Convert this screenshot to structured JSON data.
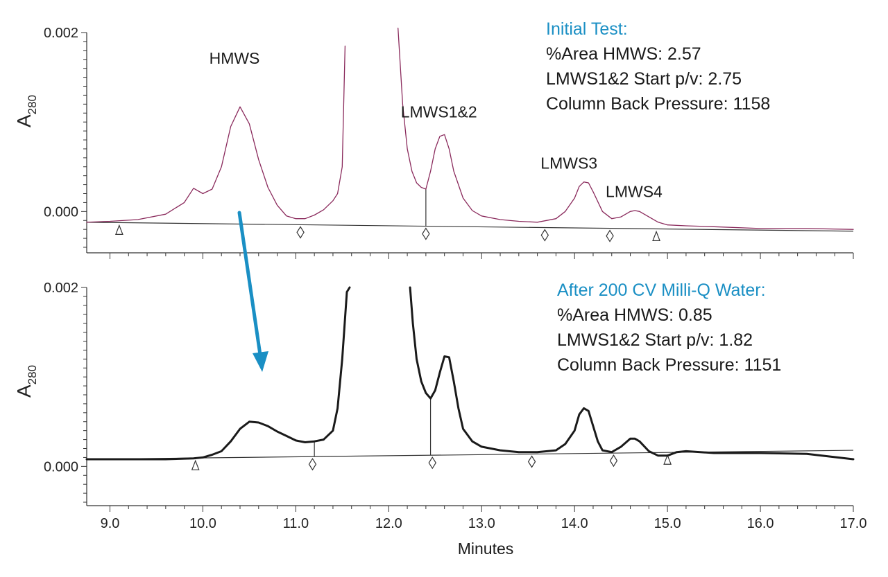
{
  "chart_data": {
    "type": "line",
    "xlabel": "Minutes",
    "x_ticks": [
      "9.0",
      "10.0",
      "11.0",
      "12.0",
      "13.0",
      "14.0",
      "15.0",
      "16.0",
      "17.0"
    ],
    "x_tick_values": [
      9,
      10,
      11,
      12,
      13,
      14,
      15,
      16,
      17
    ],
    "xlim": [
      8.75,
      17.0
    ],
    "colors": {
      "initial": "#8a2a5c",
      "after": "#1a1a1a",
      "accent": "#1a8fc4",
      "baseline": "#333333"
    },
    "panels": [
      {
        "id": "initial",
        "ylabel_main": "A",
        "ylabel_sub": "280",
        "ylim": [
          -0.0004,
          0.002
        ],
        "y_ticks": [
          "0.002",
          "0.000"
        ],
        "y_tick_values": [
          0.002,
          0.0
        ],
        "info_title": "Initial Test:",
        "info_lines": [
          "%Area HMWS: 2.57",
          "LMWS1&2 Start p/v: 2.75",
          "Column Back Pressure: 1158"
        ],
        "peak_labels": [
          {
            "text": "HMWS",
            "x": 10.4,
            "y": 0.00165
          },
          {
            "text": "LMWS1&2",
            "x": 12.6,
            "y": 0.00105
          },
          {
            "text": "LMWS3",
            "x": 14.0,
            "y": 0.00048
          },
          {
            "text": "LMWS4",
            "x": 14.7,
            "y": 0.00016
          }
        ],
        "baseline": {
          "x": [
            8.75,
            17.0
          ],
          "y": [
            -0.00012,
            -0.00022
          ]
        },
        "drops": [
          {
            "x": 12.4,
            "y": 0.00025
          }
        ],
        "markers": [
          {
            "x": 9.1,
            "shape": "triangle"
          },
          {
            "x": 11.05,
            "shape": "diamond"
          },
          {
            "x": 12.4,
            "shape": "diamond"
          },
          {
            "x": 13.68,
            "shape": "diamond"
          },
          {
            "x": 14.38,
            "shape": "diamond"
          },
          {
            "x": 14.88,
            "shape": "triangle"
          }
        ],
        "series": [
          {
            "name": "Initial Test",
            "segments": [
              {
                "x": [
                  8.75,
                  9.0,
                  9.3,
                  9.6,
                  9.8,
                  9.9,
                  10.0,
                  10.1,
                  10.2,
                  10.3,
                  10.4,
                  10.5,
                  10.6,
                  10.7,
                  10.8,
                  10.9,
                  11.0,
                  11.1,
                  11.2,
                  11.3,
                  11.4,
                  11.45,
                  11.5,
                  11.53
                ],
                "y": [
                  -0.00012,
                  -0.00011,
                  -9e-05,
                  -3e-05,
                  0.0001,
                  0.00026,
                  0.0002,
                  0.00025,
                  0.0005,
                  0.00095,
                  0.00117,
                  0.00098,
                  0.00058,
                  0.00027,
                  7e-05,
                  -5e-05,
                  -8e-05,
                  -8e-05,
                  -4e-05,
                  2e-05,
                  0.00012,
                  0.0002,
                  0.0005,
                  0.00185
                ]
              },
              {
                "x": [
                  12.1,
                  12.15,
                  12.2,
                  12.25,
                  12.3,
                  12.35,
                  12.4,
                  12.45,
                  12.5,
                  12.55,
                  12.6,
                  12.65,
                  12.7,
                  12.8,
                  12.9,
                  13.0,
                  13.2,
                  13.4,
                  13.6,
                  13.8,
                  13.9,
                  14.0,
                  14.05,
                  14.1,
                  14.15,
                  14.2,
                  14.3,
                  14.4,
                  14.5,
                  14.6,
                  14.65,
                  14.7,
                  14.8,
                  14.9,
                  15.0,
                  15.2,
                  15.5,
                  16.0,
                  16.5,
                  17.0
                ],
                "y": [
                  0.00205,
                  0.0012,
                  0.0007,
                  0.00045,
                  0.00032,
                  0.00027,
                  0.00025,
                  0.00045,
                  0.0007,
                  0.00084,
                  0.00086,
                  0.0007,
                  0.00045,
                  0.00015,
                  1e-05,
                  -5e-05,
                  -9e-05,
                  -0.00011,
                  -0.00012,
                  -8e-05,
                  0.0,
                  0.00015,
                  0.00028,
                  0.00033,
                  0.00032,
                  0.00022,
                  0.0,
                  -8e-05,
                  -6e-05,
                  0.0,
                  1e-05,
                  0.0,
                  -6e-05,
                  -0.00012,
                  -0.00015,
                  -0.00016,
                  -0.00017,
                  -0.00019,
                  -0.00019,
                  -0.0002
                ]
              }
            ]
          }
        ]
      },
      {
        "id": "after",
        "ylabel_main": "A",
        "ylabel_sub": "280",
        "ylim": [
          -0.0004,
          0.002
        ],
        "y_ticks": [
          "0.002",
          "0.000"
        ],
        "y_tick_values": [
          0.002,
          0.0
        ],
        "info_title": "After 200 CV Milli-Q Water:",
        "info_lines": [
          "%Area HMWS: 0.85",
          "LMWS1&2 Start p/v: 1.82",
          "Column Back Pressure: 1151"
        ],
        "peak_labels": [],
        "baseline": {
          "x": [
            8.75,
            17.0
          ],
          "y": [
            8e-05,
            0.00018
          ]
        },
        "drops": [
          {
            "x": 11.2,
            "y": 0.00027
          },
          {
            "x": 12.45,
            "y": 0.00075
          }
        ],
        "markers": [
          {
            "x": 9.92,
            "shape": "triangle"
          },
          {
            "x": 11.18,
            "shape": "diamond"
          },
          {
            "x": 12.47,
            "shape": "diamond"
          },
          {
            "x": 13.54,
            "shape": "diamond"
          },
          {
            "x": 14.42,
            "shape": "diamond"
          },
          {
            "x": 15.0,
            "shape": "triangle"
          }
        ],
        "series": [
          {
            "name": "After 200 CV Milli-Q Water",
            "segments": [
              {
                "x": [
                  8.75,
                  9.0,
                  9.3,
                  9.6,
                  9.9,
                  10.0,
                  10.1,
                  10.2,
                  10.3,
                  10.4,
                  10.5,
                  10.6,
                  10.7,
                  10.8,
                  10.9,
                  11.0,
                  11.1,
                  11.2,
                  11.3,
                  11.4,
                  11.45,
                  11.5,
                  11.55,
                  11.58
                ],
                "y": [
                  8e-05,
                  8e-05,
                  8e-05,
                  8e-05,
                  9e-05,
                  0.0001,
                  0.00013,
                  0.00017,
                  0.00028,
                  0.00042,
                  0.0005,
                  0.00049,
                  0.00045,
                  0.00039,
                  0.00034,
                  0.00029,
                  0.00027,
                  0.00028,
                  0.0003,
                  0.0004,
                  0.00065,
                  0.0012,
                  0.00195,
                  0.002
                ]
              },
              {
                "x": [
                  12.23,
                  12.26,
                  12.3,
                  12.35,
                  12.4,
                  12.45,
                  12.5,
                  12.55,
                  12.6,
                  12.65,
                  12.7,
                  12.75,
                  12.8,
                  12.9,
                  13.0,
                  13.2,
                  13.4,
                  13.6,
                  13.8,
                  13.9,
                  14.0,
                  14.05,
                  14.1,
                  14.15,
                  14.2,
                  14.25,
                  14.3,
                  14.4,
                  14.5,
                  14.6,
                  14.65,
                  14.7,
                  14.8,
                  14.9,
                  15.0,
                  15.1,
                  15.2,
                  15.5,
                  16.0,
                  16.5,
                  17.0
                ],
                "y": [
                  0.002,
                  0.0016,
                  0.0012,
                  0.00095,
                  0.00082,
                  0.00076,
                  0.00085,
                  0.00105,
                  0.00123,
                  0.00122,
                  0.00095,
                  0.00065,
                  0.00042,
                  0.00028,
                  0.00022,
                  0.00018,
                  0.00016,
                  0.00016,
                  0.00018,
                  0.00025,
                  0.0004,
                  0.00058,
                  0.00065,
                  0.00062,
                  0.00045,
                  0.00028,
                  0.00018,
                  0.00016,
                  0.00022,
                  0.00031,
                  0.00031,
                  0.00028,
                  0.00017,
                  0.00012,
                  0.00012,
                  0.00016,
                  0.00017,
                  0.00015,
                  0.00015,
                  0.00014,
                  8e-05
                ]
              }
            ]
          }
        ]
      }
    ]
  }
}
